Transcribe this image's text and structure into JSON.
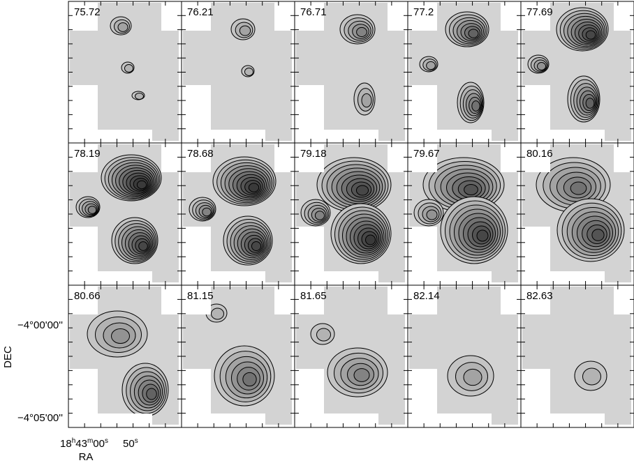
{
  "panels": [
    {
      "label": "75.72"
    },
    {
      "label": "76.21"
    },
    {
      "label": "76.71"
    },
    {
      "label": "77.2"
    },
    {
      "label": "77.69"
    },
    {
      "label": "78.19"
    },
    {
      "label": "78.68"
    },
    {
      "label": "79.18"
    },
    {
      "label": "79.67"
    },
    {
      "label": "80.16"
    },
    {
      "label": "80.66"
    },
    {
      "label": "81.15"
    },
    {
      "label": "81.65"
    },
    {
      "label": "82.14"
    },
    {
      "label": "82.63"
    }
  ],
  "axes": {
    "y_label": "DEC",
    "x_label": "RA",
    "y_ticks": [
      "−4°00'00''",
      "−4°05'00''"
    ],
    "ra_tick_1": [
      "18",
      "h",
      "43",
      "m",
      "00",
      "s"
    ],
    "ra_tick_2": [
      "50",
      "s"
    ]
  }
}
